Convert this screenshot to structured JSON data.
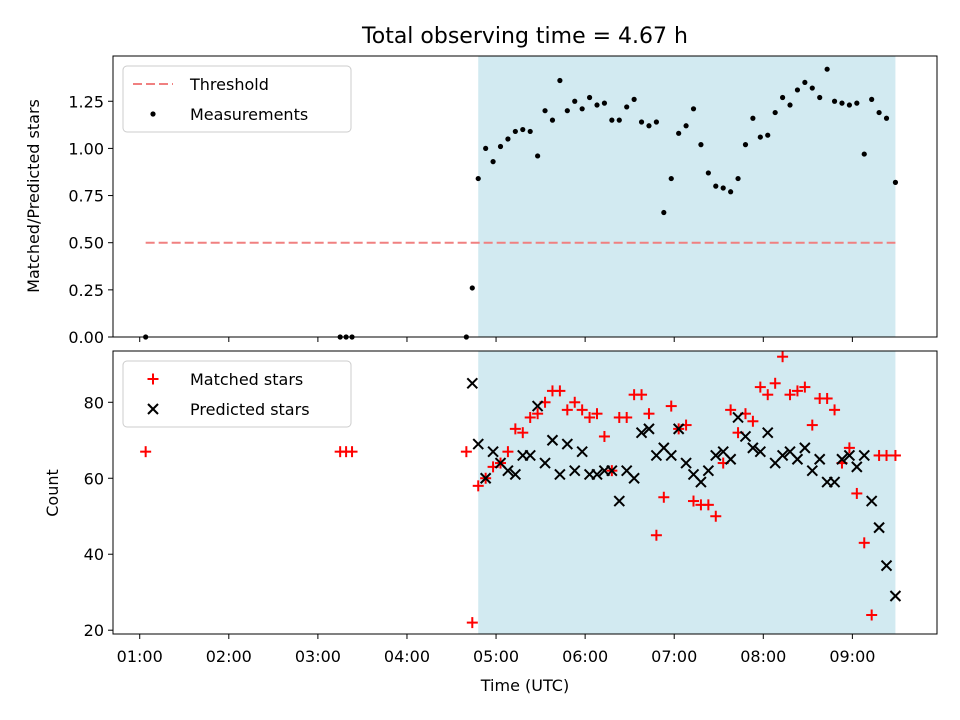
{
  "chart_data": [
    {
      "type": "scatter",
      "title": "Total observing time = 4.67 h",
      "xlabel": "",
      "ylabel": "Matched/Predicted stars",
      "xlim": [
        "00:42",
        "09:57"
      ],
      "ylim": [
        0,
        1.49
      ],
      "yticks": [
        0.0,
        0.25,
        0.5,
        0.75,
        1.0,
        1.25
      ],
      "ytick_labels": [
        "0.00",
        "0.25",
        "0.50",
        "0.75",
        "1.00",
        "1.25"
      ],
      "shaded_region": {
        "x_start": "04:48",
        "x_end": "09:29",
        "color": "#add8e6"
      },
      "legend_position": "upper left",
      "series": [
        {
          "name": "Threshold",
          "kind": "dashed-line",
          "color": "#f08080",
          "x": [
            "01:04",
            "09:29"
          ],
          "y": [
            0.5,
            0.5
          ]
        },
        {
          "name": "Measurements",
          "kind": "dot",
          "color": "#000000",
          "x": [
            "01:04",
            "03:15",
            "03:19",
            "03:23",
            "04:40",
            "04:44",
            "04:48",
            "04:53",
            "04:58",
            "05:03",
            "05:08",
            "05:13",
            "05:18",
            "05:23",
            "05:28",
            "05:33",
            "05:38",
            "05:43",
            "05:48",
            "05:53",
            "05:58",
            "06:03",
            "06:08",
            "06:13",
            "06:18",
            "06:23",
            "06:28",
            "06:33",
            "06:38",
            "06:43",
            "06:48",
            "06:53",
            "06:58",
            "07:03",
            "07:08",
            "07:13",
            "07:18",
            "07:23",
            "07:28",
            "07:33",
            "07:38",
            "07:43",
            "07:48",
            "07:53",
            "07:58",
            "08:03",
            "08:08",
            "08:13",
            "08:18",
            "08:23",
            "08:28",
            "08:33",
            "08:38",
            "08:43",
            "08:48",
            "08:53",
            "08:58",
            "09:03",
            "09:08",
            "09:13",
            "09:18",
            "09:23",
            "09:29"
          ],
          "y": [
            0.0,
            0.0,
            0.0,
            0.0,
            0.0,
            0.26,
            0.84,
            1.0,
            0.93,
            1.01,
            1.05,
            1.09,
            1.1,
            1.09,
            0.96,
            1.2,
            1.15,
            1.36,
            1.2,
            1.25,
            1.21,
            1.27,
            1.23,
            1.24,
            1.15,
            1.15,
            1.22,
            1.26,
            1.14,
            1.12,
            1.14,
            0.66,
            0.84,
            1.08,
            1.12,
            1.21,
            1.02,
            0.87,
            0.8,
            0.79,
            0.77,
            0.84,
            1.02,
            1.16,
            1.06,
            1.07,
            1.19,
            1.27,
            1.23,
            1.31,
            1.35,
            1.32,
            1.27,
            1.42,
            1.25,
            1.24,
            1.23,
            1.24,
            0.97,
            1.26,
            1.19,
            1.16,
            0.82
          ]
        }
      ]
    },
    {
      "type": "scatter",
      "title": "",
      "xlabel": "Time (UTC)",
      "ylabel": "Count",
      "xlim": [
        "00:42",
        "09:57"
      ],
      "ylim": [
        19,
        93.5
      ],
      "yticks": [
        20,
        40,
        60,
        80
      ],
      "ytick_labels": [
        "20",
        "40",
        "60",
        "80"
      ],
      "xticks": [
        "01:00",
        "02:00",
        "03:00",
        "04:00",
        "05:00",
        "06:00",
        "07:00",
        "08:00",
        "09:00"
      ],
      "shaded_region": {
        "x_start": "04:48",
        "x_end": "09:29",
        "color": "#add8e6"
      },
      "legend_position": "upper left",
      "series": [
        {
          "name": "Matched stars",
          "kind": "plus",
          "color": "#ff0000",
          "x": [
            "01:04",
            "03:15",
            "03:19",
            "03:23",
            "04:40",
            "04:44",
            "04:48",
            "04:53",
            "04:58",
            "05:03",
            "05:08",
            "05:13",
            "05:18",
            "05:23",
            "05:28",
            "05:33",
            "05:38",
            "05:43",
            "05:48",
            "05:53",
            "05:58",
            "06:03",
            "06:08",
            "06:13",
            "06:18",
            "06:23",
            "06:28",
            "06:33",
            "06:38",
            "06:43",
            "06:48",
            "06:53",
            "06:58",
            "07:03",
            "07:08",
            "07:13",
            "07:18",
            "07:23",
            "07:28",
            "07:33",
            "07:38",
            "07:43",
            "07:48",
            "07:53",
            "07:58",
            "08:03",
            "08:08",
            "08:13",
            "08:18",
            "08:23",
            "08:28",
            "08:33",
            "08:38",
            "08:43",
            "08:48",
            "08:53",
            "08:58",
            "09:03",
            "09:08",
            "09:13",
            "09:18",
            "09:23",
            "09:29"
          ],
          "y": [
            67,
            67,
            67,
            67,
            67,
            22,
            58,
            60,
            63,
            64,
            67,
            73,
            72,
            76,
            77,
            80,
            83,
            83,
            78,
            80,
            78,
            76,
            77,
            71,
            62,
            76,
            76,
            82,
            82,
            77,
            45,
            55,
            79,
            73,
            74,
            54,
            53,
            53,
            50,
            64,
            78,
            72,
            77,
            75,
            84,
            82,
            85,
            92,
            82,
            83,
            84,
            74,
            81,
            81,
            78,
            64,
            68,
            56,
            43,
            24,
            66,
            66,
            66
          ]
        },
        {
          "name": "Predicted stars",
          "kind": "x",
          "color": "#000000",
          "x": [
            "04:44",
            "04:48",
            "04:53",
            "04:58",
            "05:03",
            "05:08",
            "05:13",
            "05:18",
            "05:23",
            "05:28",
            "05:33",
            "05:38",
            "05:43",
            "05:48",
            "05:53",
            "05:58",
            "06:03",
            "06:08",
            "06:13",
            "06:18",
            "06:23",
            "06:28",
            "06:33",
            "06:38",
            "06:43",
            "06:48",
            "06:53",
            "06:58",
            "07:03",
            "07:08",
            "07:13",
            "07:18",
            "07:23",
            "07:28",
            "07:33",
            "07:38",
            "07:43",
            "07:48",
            "07:53",
            "07:58",
            "08:03",
            "08:08",
            "08:13",
            "08:18",
            "08:23",
            "08:28",
            "08:33",
            "08:38",
            "08:43",
            "08:48",
            "08:53",
            "08:58",
            "09:03",
            "09:08",
            "09:13",
            "09:18",
            "09:23",
            "09:29"
          ],
          "y": [
            85,
            69,
            60,
            67,
            64,
            62,
            61,
            66,
            66,
            79,
            64,
            70,
            61,
            69,
            62,
            67,
            61,
            61,
            62,
            62,
            54,
            62,
            60,
            72,
            73,
            66,
            68,
            66,
            73,
            64,
            61,
            59,
            62,
            66,
            67,
            65,
            76,
            71,
            68,
            67,
            72,
            64,
            66,
            67,
            65,
            68,
            62,
            65,
            59,
            59,
            65,
            66,
            63,
            66,
            54,
            47,
            37,
            29
          ]
        }
      ]
    }
  ]
}
